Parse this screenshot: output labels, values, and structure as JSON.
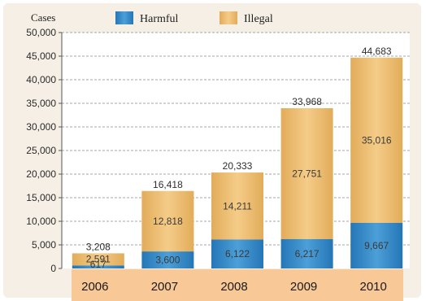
{
  "chart_data": {
    "type": "bar",
    "stacked": true,
    "ylabel": "Cases",
    "categories": [
      "2006",
      "2007",
      "2008",
      "2009",
      "2010"
    ],
    "series": [
      {
        "name": "Harmful",
        "values": [
          617,
          3600,
          6122,
          6217,
          9667
        ],
        "labels": [
          "617",
          "3,600",
          "6,122",
          "6,217",
          "9,667"
        ]
      },
      {
        "name": "Illegal",
        "values": [
          2591,
          12818,
          14211,
          27751,
          35016
        ],
        "labels": [
          "2,591",
          "12,818",
          "14,211",
          "27,751",
          "35,016"
        ]
      }
    ],
    "totals": [
      3208,
      16418,
      20333,
      33968,
      44683
    ],
    "total_labels": [
      "3,208",
      "16,418",
      "20,333",
      "33,968",
      "44,683"
    ],
    "ylim": [
      0,
      50000
    ],
    "yticks": [
      0,
      5000,
      10000,
      15000,
      20000,
      25000,
      30000,
      35000,
      40000,
      45000,
      50000
    ],
    "ytick_labels": [
      "0",
      "5,000",
      "10,000",
      "15,000",
      "20,000",
      "25,000",
      "30,000",
      "35,000",
      "40,000",
      "45,000",
      "50,000"
    ],
    "grid": true,
    "legend_position": "top",
    "colors": {
      "harmful": "#2f86c4",
      "illegal": "#e9b86a",
      "category_band": "#f8c896"
    }
  }
}
